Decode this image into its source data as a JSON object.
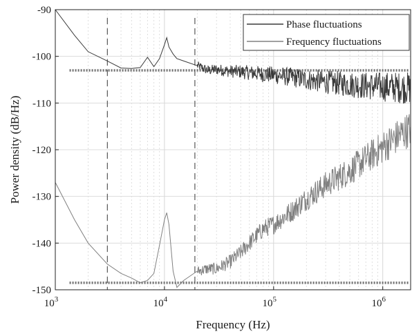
{
  "chart_data": {
    "type": "line",
    "xlabel": "Frequency (Hz)",
    "ylabel": "Power density (dB/Hz)",
    "xscale": "log",
    "xlim": [
      1000,
      1800000
    ],
    "ylim": [
      -150,
      -90
    ],
    "x_ticks": [
      {
        "base": "10",
        "exp": "3",
        "value": 1000
      },
      {
        "base": "10",
        "exp": "4",
        "value": 10000
      },
      {
        "base": "10",
        "exp": "5",
        "value": 100000
      },
      {
        "base": "10",
        "exp": "6",
        "value": 1000000
      }
    ],
    "y_ticks": [
      "-90",
      "-100",
      "-110",
      "-120",
      "-130",
      "-140",
      "-150"
    ],
    "y_tick_values": [
      -90,
      -100,
      -110,
      -120,
      -130,
      -140,
      -150
    ],
    "grid": "on (minor log gridlines on x)",
    "legend_position": "top-right",
    "series": [
      {
        "name": "Phase fluctuations",
        "color": "#3a3a3a",
        "x": [
          1000,
          1500,
          2000,
          3000,
          4000,
          5000,
          6000,
          7000,
          8000,
          9000,
          10000,
          10500,
          11000,
          12000,
          13000,
          15000,
          20000,
          25000,
          30000,
          40000,
          50000,
          60000,
          80000,
          100000,
          150000,
          200000,
          300000,
          500000,
          700000,
          1000000,
          1500000,
          1800000
        ],
        "values": [
          -90,
          -95.5,
          -99,
          -101,
          -102.5,
          -102.6,
          -102.4,
          -100.2,
          -102.2,
          -100.5,
          -97.5,
          -96,
          -98,
          -99.5,
          -100.5,
          -101,
          -102,
          -103,
          -102.8,
          -103.2,
          -103.3,
          -103.5,
          -103.8,
          -104,
          -104.5,
          -105,
          -105.5,
          -106,
          -106.3,
          -106.5,
          -106.7,
          -106.8
        ],
        "noise_start": 20000,
        "noise_amplitude_db": 1.6
      },
      {
        "name": "Frequency fluctuations",
        "color": "#808080",
        "x": [
          1000,
          1500,
          2000,
          3000,
          4000,
          5000,
          6000,
          7000,
          8000,
          9000,
          10000,
          10500,
          11000,
          12000,
          13000,
          15000,
          20000,
          25000,
          30000,
          40000,
          50000,
          60000,
          80000,
          100000,
          150000,
          200000,
          300000,
          500000,
          700000,
          1000000,
          1500000,
          1800000
        ],
        "values": [
          -127,
          -135,
          -140,
          -144.5,
          -146.5,
          -147.5,
          -148.5,
          -148,
          -146.5,
          -140.5,
          -135,
          -133.5,
          -136,
          -146,
          -149.5,
          -148,
          -146,
          -145.5,
          -145.5,
          -144,
          -142,
          -140,
          -137,
          -136,
          -133,
          -130.5,
          -127.5,
          -124.5,
          -122,
          -119.5,
          -116.5,
          -115.5
        ],
        "noise_start": 20000,
        "noise_amplitude_db": 1.8
      }
    ],
    "reference_lines": [
      {
        "orientation": "horizontal",
        "value": -103,
        "style": "dotted",
        "color": "#6e6e6e"
      },
      {
        "orientation": "horizontal",
        "value": -148.5,
        "style": "dotted",
        "color": "#6e6e6e"
      },
      {
        "orientation": "vertical",
        "value": 3000,
        "style": "dashed",
        "color": "#555555"
      },
      {
        "orientation": "vertical",
        "value": 19000,
        "style": "dashed",
        "color": "#555555"
      }
    ]
  }
}
